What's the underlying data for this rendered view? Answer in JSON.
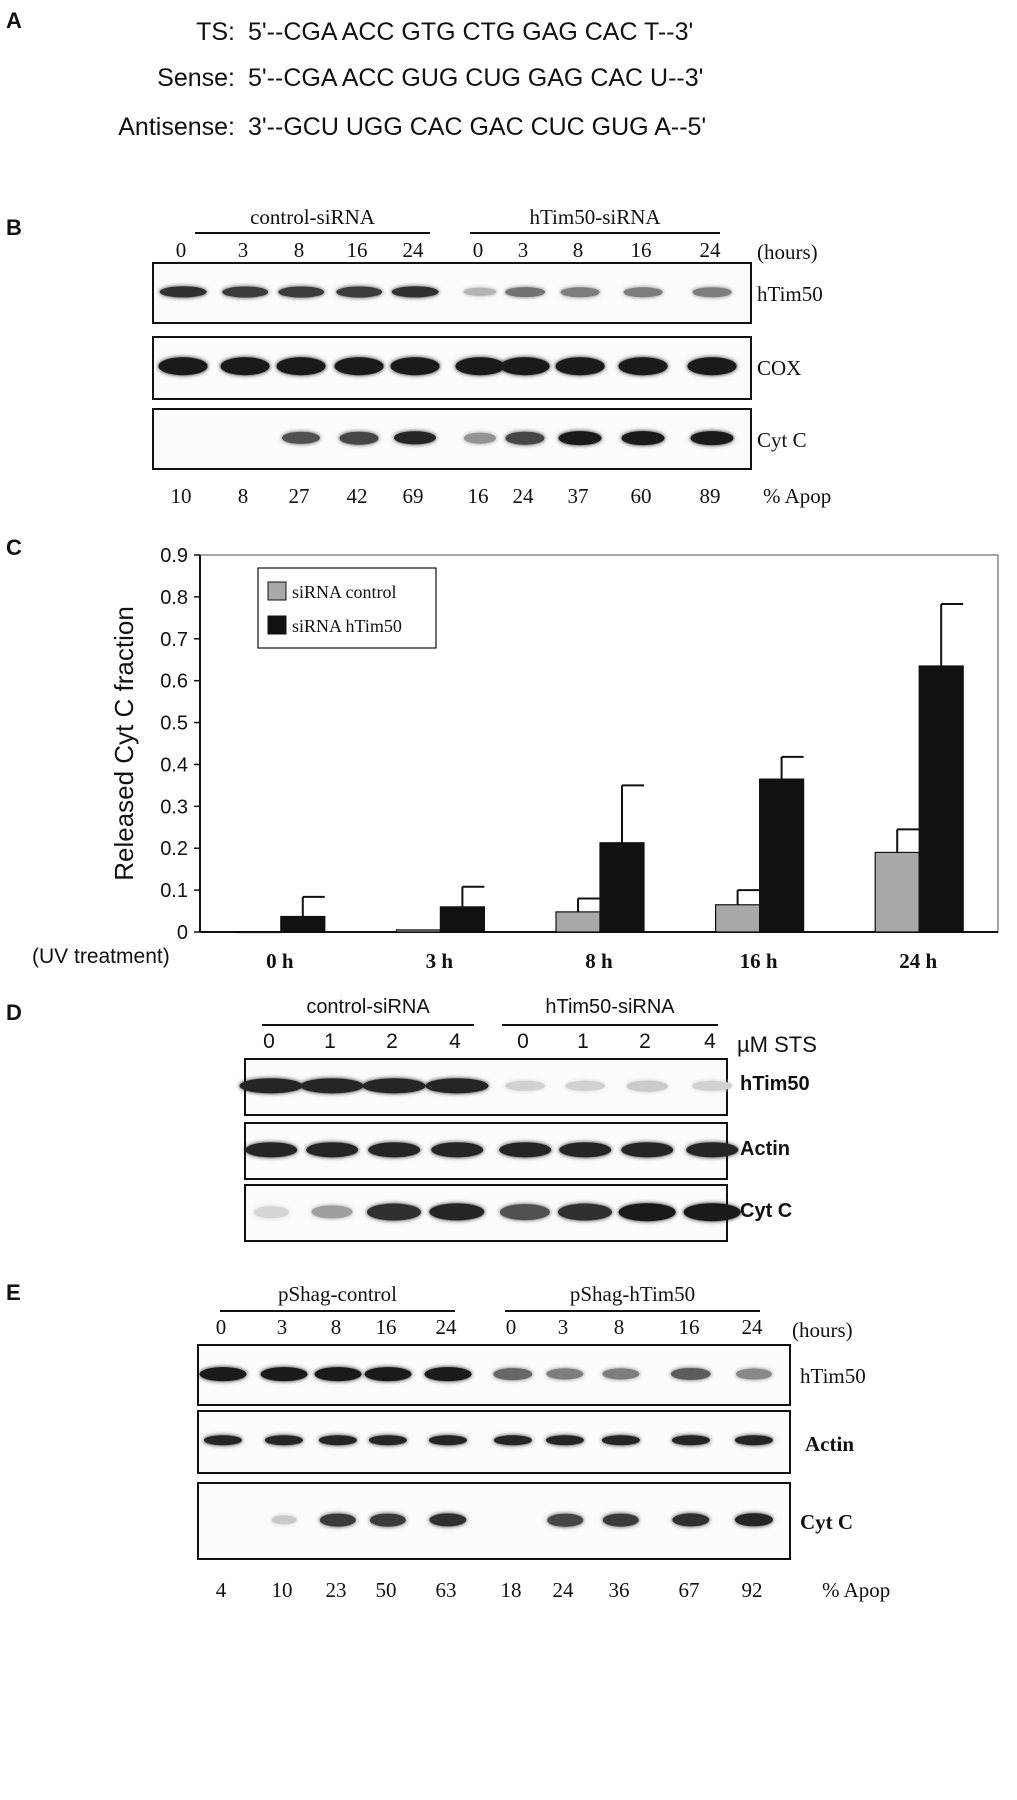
{
  "panelA": {
    "letter": "A",
    "rows": [
      {
        "label": "TS:",
        "seq": "5'--CGA ACC GTG CTG GAG CAC T--3'"
      },
      {
        "label": "Sense:",
        "seq": "5'--CGA ACC GUG CUG GAG CAC U--3'"
      },
      {
        "label": "Antisense:",
        "seq": "3'--GCU UGG CAC GAC CUC GUG A--5'"
      }
    ]
  },
  "panelB": {
    "letter": "B",
    "group1": "control-siRNA",
    "group2": "hTim50-siRNA",
    "lanes": [
      "0",
      "3",
      "8",
      "16",
      "24",
      "0",
      "3",
      "8",
      "16",
      "24"
    ],
    "unit": "(hours)",
    "blots": [
      "hTim50",
      "COX",
      "Cyt C"
    ],
    "apop": [
      "10",
      "8",
      "27",
      "42",
      "69",
      "16",
      "24",
      "37",
      "60",
      "89"
    ],
    "apop_label": "% Apop",
    "intensities": {
      "hTim50": [
        0.85,
        0.8,
        0.8,
        0.8,
        0.85,
        0.25,
        0.55,
        0.5,
        0.5,
        0.5
      ],
      "COX": [
        0.95,
        0.95,
        0.95,
        0.95,
        0.95,
        0.95,
        0.95,
        0.95,
        0.95,
        0.95
      ],
      "Cyt C": [
        0.0,
        0.0,
        0.7,
        0.75,
        0.9,
        0.4,
        0.75,
        0.95,
        0.95,
        0.95
      ]
    }
  },
  "panelC": {
    "letter": "C",
    "treatment_label": "(UV treatment)"
  },
  "chart_data": {
    "type": "bar",
    "categories": [
      "0 h",
      "3 h",
      "8 h",
      "16 h",
      "24 h"
    ],
    "series": [
      {
        "name": "siRNA control",
        "values": [
          0.0,
          0.005,
          0.048,
          0.065,
          0.19
        ],
        "errors": [
          0.0,
          0.0,
          0.032,
          0.035,
          0.055
        ],
        "color": "#a8a8a8"
      },
      {
        "name": "siRNA hTim50",
        "values": [
          0.037,
          0.06,
          0.213,
          0.365,
          0.635
        ],
        "errors": [
          0.047,
          0.048,
          0.137,
          0.053,
          0.148
        ],
        "color": "#111111"
      }
    ],
    "ylabel": "Released Cyt C fraction",
    "xlabel": "",
    "ylim": [
      0,
      0.9
    ],
    "yticks": [
      "0",
      "0.1",
      "0.2",
      "0.3",
      "0.4",
      "0.5",
      "0.6",
      "0.7",
      "0.8",
      "0.9"
    ],
    "legend": "top-left",
    "grid": false
  },
  "panelD": {
    "letter": "D",
    "group1": "control-siRNA",
    "group2": "hTim50-siRNA",
    "lanes": [
      "0",
      "1",
      "2",
      "4",
      "0",
      "1",
      "2",
      "4"
    ],
    "unit": "µM STS",
    "blots": [
      "hTim50",
      "Actin",
      "Cyt C"
    ],
    "intensities": {
      "hTim50": [
        0.9,
        0.9,
        0.9,
        0.9,
        0.12,
        0.12,
        0.15,
        0.12
      ],
      "Actin": [
        0.9,
        0.9,
        0.9,
        0.9,
        0.9,
        0.9,
        0.9,
        0.9
      ],
      "Cyt C": [
        0.1,
        0.35,
        0.85,
        0.9,
        0.7,
        0.85,
        0.95,
        0.95
      ]
    }
  },
  "panelE": {
    "letter": "E",
    "group1": "pShag-control",
    "group2": "pShag-hTim50",
    "lanes": [
      "0",
      "3",
      "8",
      "16",
      "24",
      "0",
      "3",
      "8",
      "16",
      "24"
    ],
    "unit": "(hours)",
    "blots": [
      "hTim50",
      "Actin",
      "Cyt C"
    ],
    "apop": [
      "4",
      "10",
      "23",
      "50",
      "63",
      "18",
      "24",
      "36",
      "67",
      "92"
    ],
    "apop_label": "% Apop",
    "intensities": {
      "hTim50": [
        0.95,
        0.95,
        0.95,
        0.95,
        0.95,
        0.6,
        0.5,
        0.5,
        0.65,
        0.45
      ],
      "Actin": [
        0.9,
        0.9,
        0.9,
        0.9,
        0.9,
        0.9,
        0.9,
        0.9,
        0.9,
        0.9
      ],
      "Cyt C": [
        0.0,
        0.15,
        0.8,
        0.8,
        0.85,
        0.0,
        0.75,
        0.8,
        0.85,
        0.9
      ]
    }
  }
}
